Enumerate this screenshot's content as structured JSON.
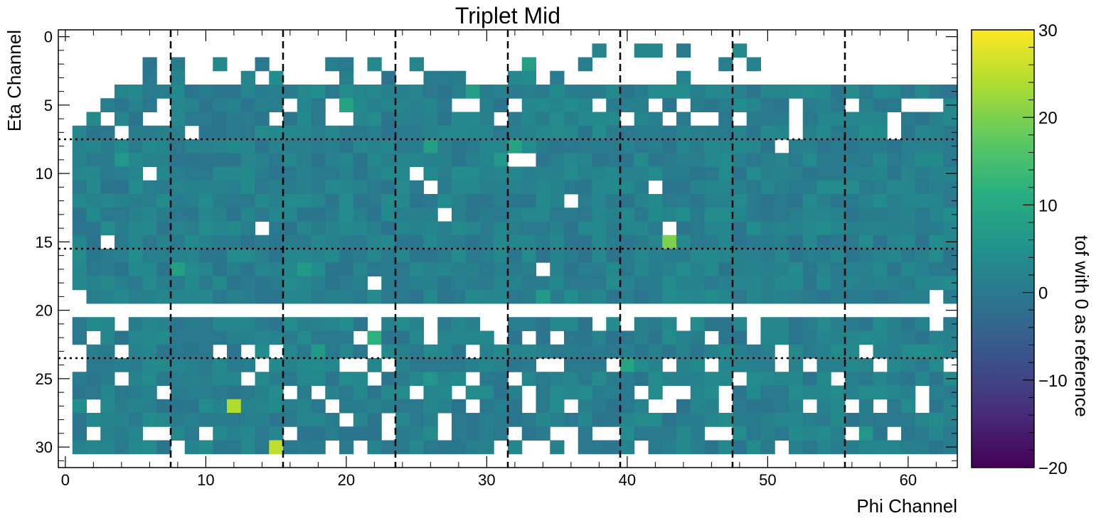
{
  "chart_data": {
    "type": "heatmap",
    "title": "Triplet Mid",
    "xlabel": "Phi Channel",
    "ylabel": "Eta Channel",
    "colorbar_label": "tof with 0 as reference",
    "xlim": [
      -0.5,
      63.5
    ],
    "ylim": [
      -0.5,
      31.5
    ],
    "y_inverted": true,
    "x_ticks": [
      0,
      10,
      20,
      30,
      40,
      50,
      60
    ],
    "x_tick_labels": [
      "0",
      "10",
      "20",
      "30",
      "40",
      "50",
      "60"
    ],
    "y_ticks": [
      0,
      5,
      10,
      15,
      20,
      25,
      30
    ],
    "y_tick_labels": [
      "0",
      "5",
      "10",
      "15",
      "20",
      "25",
      "30"
    ],
    "colorbar_range": [
      -20,
      30
    ],
    "colorbar_ticks": [
      -20,
      -10,
      0,
      10,
      20,
      30
    ],
    "colorbar_tick_labels": [
      "−20",
      "−10",
      "0",
      "10",
      "20",
      "30"
    ],
    "colormap": "viridis",
    "vertical_dashed_lines_x": [
      7.5,
      15.5,
      23.5,
      31.5,
      39.5,
      47.5,
      55.5
    ],
    "horizontal_dotted_lines_y": [
      7.5,
      15.5,
      23.5
    ],
    "cell_grid": {
      "nx": 64,
      "ny": 32,
      "baseline_value": 1.5,
      "filled_eta_rows": [
        [
          1,
          2
        ],
        [
          3,
          4
        ],
        [
          4,
          6
        ],
        [
          6,
          19
        ],
        [
          21,
          30
        ]
      ],
      "empty_eta_rows": [
        0,
        20
      ],
      "empty_cells": [
        [
          1,
          4
        ],
        [
          1,
          6
        ],
        [
          1,
          7
        ],
        [
          1,
          8
        ],
        [
          1,
          9
        ],
        [
          1,
          10
        ],
        [
          1,
          11
        ],
        [
          1,
          12
        ],
        [
          1,
          13
        ],
        [
          1,
          14
        ],
        [
          1,
          15
        ],
        [
          1,
          16
        ],
        [
          1,
          17
        ],
        [
          1,
          18
        ],
        [
          1,
          19
        ],
        [
          1,
          20
        ],
        [
          1,
          21
        ],
        [
          1,
          22
        ],
        [
          1,
          23
        ],
        [
          1,
          24
        ],
        [
          1,
          25
        ],
        [
          1,
          26
        ],
        [
          1,
          27
        ],
        [
          1,
          28
        ],
        [
          1,
          29
        ],
        [
          1,
          30
        ]
      ],
      "notable_cells": [
        {
          "phi": 43,
          "eta": 15,
          "value": 20
        },
        {
          "phi": 12,
          "eta": 27,
          "value": 24
        },
        {
          "phi": 15,
          "eta": 30,
          "value": 25
        },
        {
          "phi": 22,
          "eta": 22,
          "value": 12
        },
        {
          "phi": 20,
          "eta": 5,
          "value": 9
        },
        {
          "phi": 29,
          "eta": 4,
          "value": 8
        },
        {
          "phi": 32,
          "eta": 8,
          "value": 9
        },
        {
          "phi": 33,
          "eta": 2,
          "value": 8
        },
        {
          "phi": 26,
          "eta": 8,
          "value": 8
        },
        {
          "phi": 8,
          "eta": 17,
          "value": 8
        },
        {
          "phi": 40,
          "eta": 24,
          "value": 9
        },
        {
          "phi": 17,
          "eta": 17,
          "value": 7
        },
        {
          "phi": 34,
          "eta": 19,
          "value": 7
        },
        {
          "phi": 18,
          "eta": 23,
          "value": 7
        },
        {
          "phi": 4,
          "eta": 9,
          "value": 6
        },
        {
          "phi": 31,
          "eta": 9,
          "value": 6
        },
        {
          "phi": 57,
          "eta": 29,
          "value": 6
        },
        {
          "phi": 26,
          "eta": 25,
          "value": 6
        }
      ]
    }
  }
}
